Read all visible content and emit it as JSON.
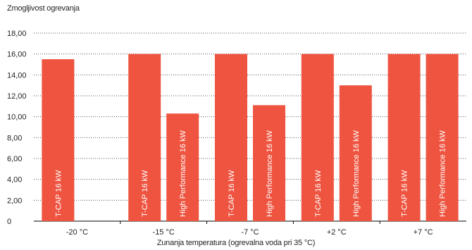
{
  "chart_data": {
    "type": "bar",
    "ylabel": "Zmogljivost ogrevanja",
    "xlabel": "Zunanja temperatura (ogrevalna voda pri 35 °C)",
    "ylim": [
      0,
      18
    ],
    "yticks": [
      "0",
      "2,00",
      "4,00",
      "6,00",
      "8,00",
      "10,00",
      "12,00",
      "14,00",
      "16,00",
      "18,00"
    ],
    "grid": "horizontal dotted",
    "bar_color": "#ee5440",
    "categories": [
      "-20 °C",
      "-15 °C",
      "-7 °C",
      "+2 °C",
      "+7 °C"
    ],
    "series": [
      {
        "name": "T-CAP 16 kW",
        "values": [
          15.5,
          16.0,
          16.0,
          16.0,
          16.0
        ]
      },
      {
        "name": "High Performance 16 kW",
        "values": [
          null,
          10.3,
          11.1,
          13.0,
          16.0
        ]
      }
    ]
  }
}
